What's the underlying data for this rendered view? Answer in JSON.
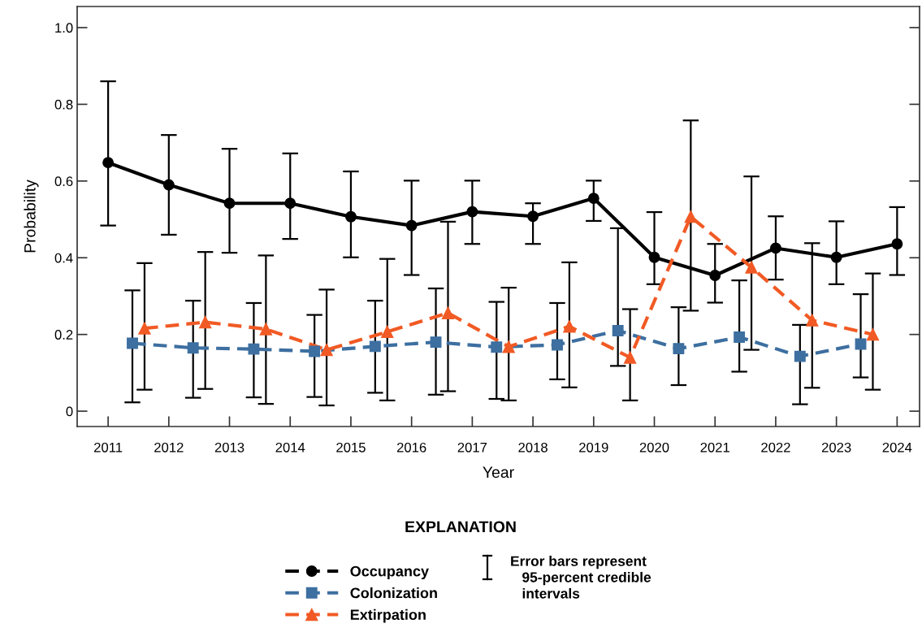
{
  "chart_data": {
    "type": "line",
    "xlabel": "Year",
    "ylabel": "Probability",
    "legend_title": "EXPLANATION",
    "annotations": [
      "Error bars represent\n   95-percent credible\n   intervals"
    ],
    "xlim": [
      2010.49,
      2024.37
    ],
    "xticks": [
      2011,
      2012,
      2013,
      2014,
      2015,
      2016,
      2017,
      2018,
      2019,
      2020,
      2021,
      2022,
      2023,
      2024
    ],
    "ylim": [
      -0.04,
      1.055
    ],
    "yticks": [
      0,
      0.2,
      0.4,
      0.6,
      0.8,
      {
        "value": 1.0,
        "label": "1.0"
      }
    ],
    "grid": false,
    "legend": "bottom",
    "series": [
      {
        "name": "Occupancy",
        "color": "#000000",
        "marker": "circle",
        "line_style": "solid",
        "x": [
          2011,
          2012,
          2013,
          2014,
          2015,
          2016,
          2017,
          2018,
          2019,
          2020,
          2021,
          2022,
          2023,
          2024
        ],
        "values": [
          0.648,
          0.59,
          0.542,
          0.542,
          0.507,
          0.484,
          0.52,
          0.508,
          0.555,
          0.401,
          0.354,
          0.425,
          0.401,
          0.436
        ],
        "errors": [
          [
            0.484,
            0.86
          ],
          [
            0.46,
            0.72
          ],
          [
            0.413,
            0.684
          ],
          [
            0.449,
            0.672
          ],
          [
            0.401,
            0.625
          ],
          [
            0.355,
            0.601
          ],
          [
            0.436,
            0.601
          ],
          [
            0.436,
            0.542
          ],
          [
            0.496,
            0.601
          ],
          [
            0.331,
            0.519
          ],
          [
            0.283,
            0.436
          ],
          [
            0.343,
            0.508
          ],
          [
            0.331,
            0.495
          ],
          [
            0.355,
            0.532
          ]
        ]
      },
      {
        "name": "Colonization",
        "color": "#3d6fa0",
        "marker": "square",
        "line_style": "dashed",
        "x": [
          2011.4,
          2012.4,
          2013.4,
          2014.4,
          2015.4,
          2016.4,
          2017.4,
          2018.4,
          2019.4,
          2020.4,
          2021.4,
          2022.4,
          2023.4
        ],
        "values": [
          0.177,
          0.165,
          0.162,
          0.156,
          0.169,
          0.18,
          0.167,
          0.173,
          0.21,
          0.163,
          0.193,
          0.143,
          0.175
        ],
        "errors": [
          [
            0.023,
            0.315
          ],
          [
            0.035,
            0.288
          ],
          [
            0.036,
            0.282
          ],
          [
            0.037,
            0.251
          ],
          [
            0.048,
            0.288
          ],
          [
            0.043,
            0.32
          ],
          [
            0.032,
            0.285
          ],
          [
            0.083,
            0.282
          ],
          [
            0.118,
            0.477
          ],
          [
            0.068,
            0.271
          ],
          [
            0.103,
            0.341
          ],
          [
            0.018,
            0.225
          ],
          [
            0.088,
            0.305
          ]
        ]
      },
      {
        "name": "Extirpation",
        "color": "#f15a24",
        "marker": "triangle",
        "line_style": "dashed",
        "x": [
          2011.6,
          2012.6,
          2013.6,
          2014.6,
          2015.6,
          2016.6,
          2017.6,
          2018.6,
          2019.6,
          2020.6,
          2021.6,
          2022.6,
          2023.6
        ],
        "values": [
          0.216,
          0.232,
          0.214,
          0.16,
          0.207,
          0.256,
          0.168,
          0.221,
          0.14,
          0.507,
          0.375,
          0.237,
          0.2
        ],
        "errors": [
          [
            0.056,
            0.386
          ],
          [
            0.058,
            0.415
          ],
          [
            0.019,
            0.406
          ],
          [
            0.015,
            0.317
          ],
          [
            0.028,
            0.397
          ],
          [
            0.052,
            0.494
          ],
          [
            0.028,
            0.322
          ],
          [
            0.062,
            0.388
          ],
          [
            0.028,
            0.266
          ],
          [
            0.262,
            0.758
          ],
          [
            0.16,
            0.612
          ],
          [
            0.061,
            0.438
          ],
          [
            0.056,
            0.359
          ]
        ]
      }
    ]
  }
}
